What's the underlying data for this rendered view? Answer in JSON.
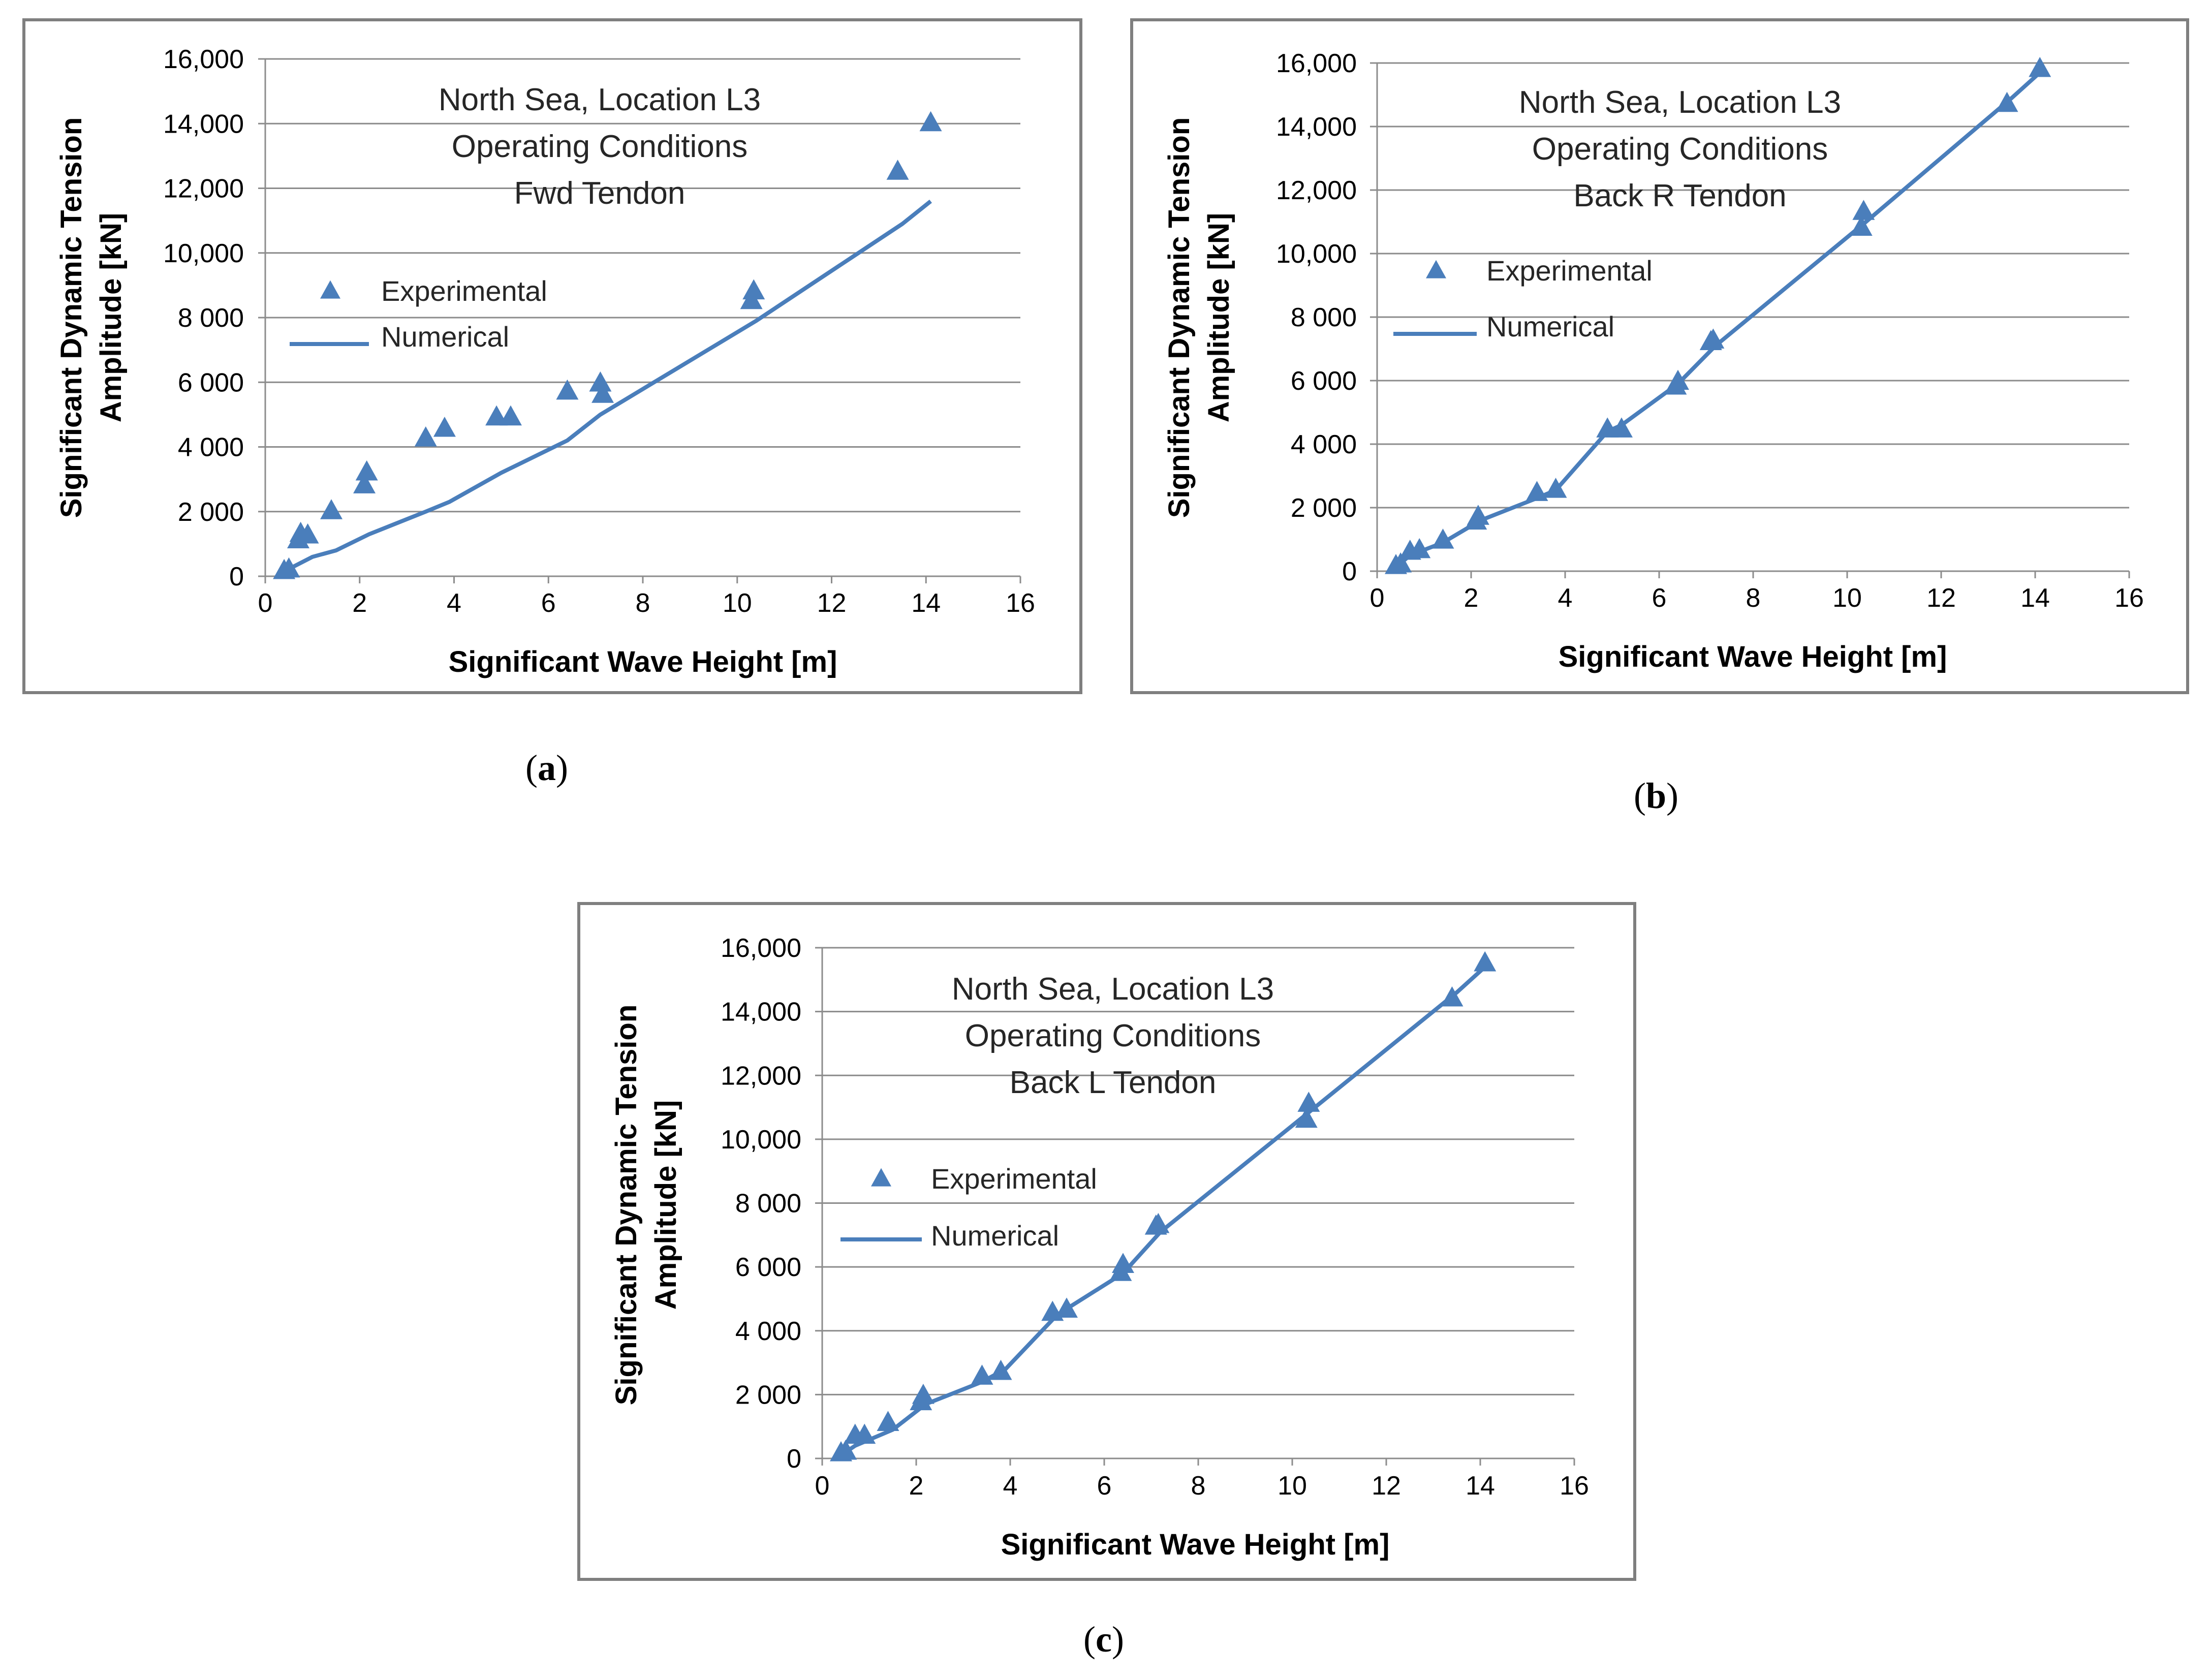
{
  "colors": {
    "series": "#4a7ebb",
    "grid": "#8c8c8c",
    "frame": "#7f7f7f"
  },
  "chart_data": [
    {
      "id": "a",
      "type": "scatter",
      "caption": "a",
      "title_lines": [
        "North Sea, Location L3",
        "Operating Conditions",
        "Fwd Tendon"
      ],
      "xlabel": "Significant Wave Height [m]",
      "ylabel_lines": [
        "Significant Dynamic Tension",
        "Amplitude [kN]"
      ],
      "xlim": [
        0,
        16
      ],
      "ylim": [
        0,
        16000
      ],
      "x_ticks": [
        "0",
        "2",
        "4",
        "6",
        "8",
        "10",
        "12",
        "14",
        "16"
      ],
      "y_ticks": [
        "0",
        "2 000",
        "4 000",
        "6 000",
        "8 000",
        "10,000",
        "12,000",
        "14,000",
        "16,000"
      ],
      "legend": {
        "experimental": "Experimental",
        "numerical": "Numerical"
      },
      "series": [
        {
          "name": "Experimental",
          "kind": "markers",
          "x": [
            0.4,
            0.5,
            0.7,
            0.75,
            0.9,
            1.4,
            2.1,
            2.15,
            3.4,
            3.8,
            4.9,
            5.2,
            6.4,
            7.1,
            7.15,
            10.3,
            10.35,
            13.4,
            14.1
          ],
          "y": [
            150,
            200,
            1100,
            1300,
            1250,
            2000,
            2800,
            3200,
            4250,
            4550,
            4900,
            4900,
            5700,
            5950,
            5600,
            8500,
            8800,
            12500,
            14000
          ]
        },
        {
          "name": "Numerical",
          "kind": "line",
          "x": [
            0.3,
            0.6,
            1.0,
            1.5,
            2.2,
            3.4,
            3.9,
            5.0,
            6.4,
            7.1,
            10.4,
            13.5,
            14.1
          ],
          "y": [
            0,
            300,
            600,
            800,
            1300,
            2000,
            2300,
            3200,
            4200,
            5000,
            7900,
            10900,
            11600
          ]
        }
      ]
    },
    {
      "id": "b",
      "type": "scatter",
      "caption": "b",
      "title_lines": [
        "North Sea, Location L3",
        "Operating Conditions",
        "Back R Tendon"
      ],
      "xlabel": "Significant Wave Height [m]",
      "ylabel_lines": [
        "Significant Dynamic Tension",
        "Amplitude [kN]"
      ],
      "xlim": [
        0,
        16
      ],
      "ylim": [
        0,
        16000
      ],
      "x_ticks": [
        "0",
        "2",
        "4",
        "6",
        "8",
        "10",
        "12",
        "14",
        "16"
      ],
      "y_ticks": [
        "0",
        "2 000",
        "4 000",
        "6 000",
        "8 000",
        "10,000",
        "12,000",
        "14,000",
        "16,000"
      ],
      "legend": {
        "experimental": "Experimental",
        "numerical": "Numerical"
      },
      "series": [
        {
          "name": "Experimental",
          "kind": "markers",
          "x": [
            0.4,
            0.5,
            0.7,
            0.9,
            1.4,
            2.1,
            2.15,
            3.4,
            3.8,
            4.9,
            5.2,
            6.35,
            6.4,
            7.1,
            7.15,
            10.3,
            10.35,
            13.4,
            14.1
          ],
          "y": [
            150,
            200,
            600,
            650,
            950,
            1550,
            1700,
            2450,
            2550,
            4450,
            4450,
            5800,
            5950,
            7200,
            7250,
            10800,
            11300,
            14700,
            15800
          ]
        },
        {
          "name": "Numerical",
          "kind": "line",
          "x": [
            0.3,
            0.7,
            1.4,
            2.2,
            3.4,
            3.8,
            4.9,
            5.2,
            6.4,
            7.2,
            10.4,
            13.5,
            14.1
          ],
          "y": [
            0,
            500,
            900,
            1600,
            2300,
            2550,
            4400,
            4600,
            5900,
            7100,
            11000,
            14900,
            15700
          ]
        }
      ]
    },
    {
      "id": "c",
      "type": "scatter",
      "caption": "c",
      "title_lines": [
        "North Sea, Location L3",
        "Operating Conditions",
        "Back L Tendon"
      ],
      "xlabel": "Significant Wave Height [m]",
      "ylabel_lines": [
        "Significant Dynamic Tension",
        "Amplitude [kN]"
      ],
      "xlim": [
        0,
        16
      ],
      "ylim": [
        0,
        16000
      ],
      "x_ticks": [
        "0",
        "2",
        "4",
        "6",
        "8",
        "10",
        "12",
        "14",
        "16"
      ],
      "y_ticks": [
        "0",
        "2 000",
        "4 000",
        "6 000",
        "8 000",
        "10,000",
        "12,000",
        "14,000",
        "16,000"
      ],
      "legend": {
        "experimental": "Experimental",
        "numerical": "Numerical"
      },
      "series": [
        {
          "name": "Experimental",
          "kind": "markers",
          "x": [
            0.4,
            0.5,
            0.7,
            0.9,
            1.4,
            2.1,
            2.15,
            3.4,
            3.8,
            4.9,
            5.2,
            6.35,
            6.4,
            7.1,
            7.15,
            10.3,
            10.35,
            13.4,
            14.1
          ],
          "y": [
            150,
            200,
            700,
            700,
            1100,
            1750,
            1950,
            2550,
            2700,
            4550,
            4650,
            5800,
            6050,
            7250,
            7300,
            10600,
            11100,
            14400,
            15500
          ]
        },
        {
          "name": "Numerical",
          "kind": "line",
          "x": [
            0.3,
            0.7,
            1.5,
            2.2,
            3.4,
            3.9,
            5.0,
            6.4,
            7.2,
            10.4,
            13.5,
            14.1
          ],
          "y": [
            0,
            400,
            900,
            1700,
            2400,
            2800,
            4500,
            5800,
            7100,
            10900,
            14600,
            15400
          ]
        }
      ]
    }
  ]
}
